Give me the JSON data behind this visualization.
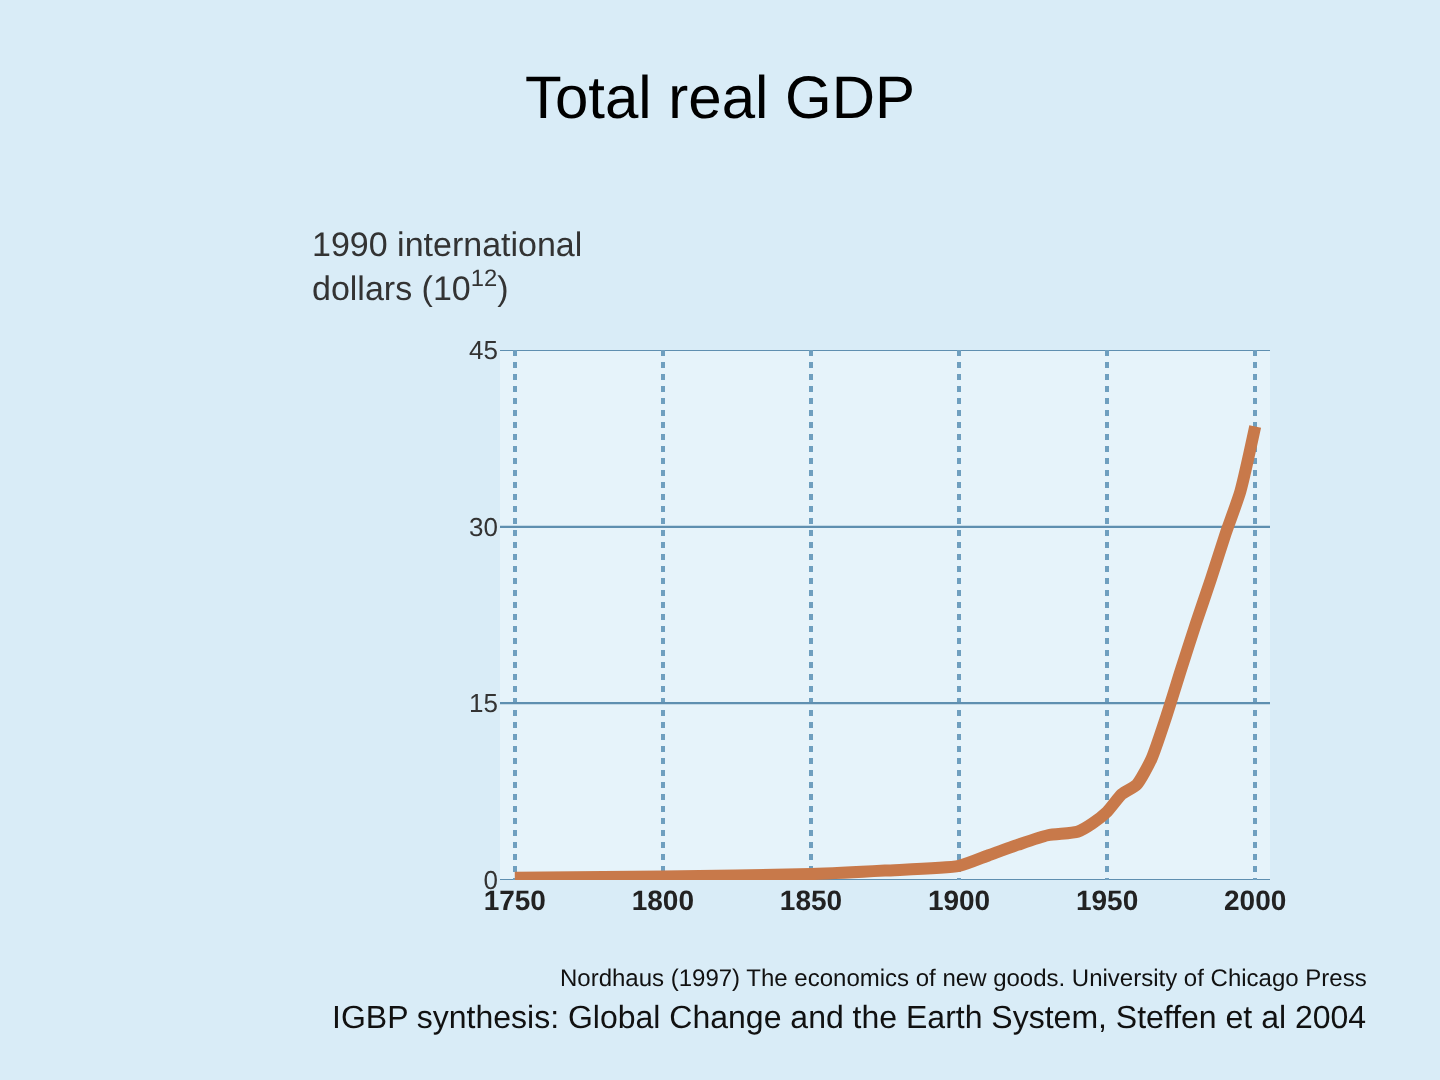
{
  "chart_data": {
    "type": "line",
    "title": "Total real GDP",
    "ylabel": "1990 international dollars (10$^{12}$)",
    "x": [
      1750,
      1800,
      1850,
      1875,
      1900,
      1910,
      1920,
      1930,
      1940,
      1945,
      1950,
      1955,
      1960,
      1965,
      1970,
      1975,
      1980,
      1985,
      1990,
      1995,
      2000
    ],
    "series": [
      {
        "color": "#c8794a",
        "values": [
          0.2,
          0.3,
          0.5,
          0.8,
          1.2,
          2.1,
          3.0,
          3.8,
          4.1,
          4.8,
          5.8,
          7.3,
          8.1,
          10.3,
          13.9,
          17.9,
          21.8,
          25.5,
          29.4,
          33,
          38.5
        ]
      }
    ],
    "xlim": [
      1745,
      2005
    ],
    "xticks": [
      1750,
      1800,
      1850,
      1900,
      1950,
      2000
    ],
    "ylim": [
      0,
      45
    ],
    "yticks": [
      0,
      15,
      30,
      45
    ],
    "grid": true,
    "legend": false,
    "marker": "none",
    "line_style": "solid",
    "annotations": [
      "Nordhaus (1997) The economics of new goods. University of Chicago Press",
      "IGBP synthesis: Global Change and the Earth System, Steffen et al 2004"
    ]
  }
}
